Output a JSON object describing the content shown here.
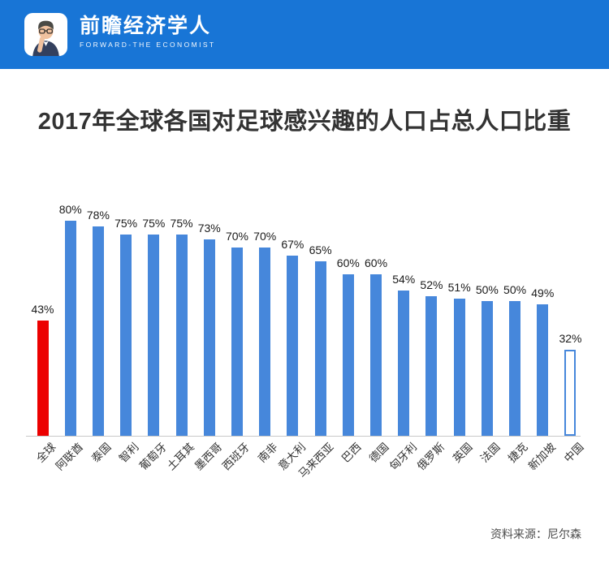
{
  "header": {
    "brand_cn": "前瞻经济学人",
    "brand_en": "FORWARD-THE ECONOMIST",
    "banner_color": "#1875D6"
  },
  "title": "2017年全球各国对足球感兴趣的人口占总人口比重",
  "source": "资料来源：尼尔森",
  "chart_data": {
    "type": "bar",
    "title": "2017年全球各国对足球感兴趣的人口占总人口比重",
    "categories": [
      "全球",
      "阿联酋",
      "泰国",
      "智利",
      "葡萄牙",
      "土耳其",
      "墨西哥",
      "西班牙",
      "南非",
      "意大利",
      "马来西亚",
      "巴西",
      "德国",
      "匈牙利",
      "俄罗斯",
      "英国",
      "法国",
      "捷克",
      "新加坡",
      "中国"
    ],
    "values": [
      43,
      80,
      78,
      75,
      75,
      75,
      73,
      70,
      70,
      67,
      65,
      60,
      60,
      54,
      52,
      51,
      50,
      50,
      49,
      32
    ],
    "labels": [
      "43%",
      "80%",
      "78%",
      "75%",
      "75%",
      "75%",
      "73%",
      "70%",
      "70%",
      "67%",
      "65%",
      "60%",
      "60%",
      "54%",
      "52%",
      "51%",
      "50%",
      "50%",
      "49%",
      "32%"
    ],
    "unit": "%",
    "xlabel": "",
    "ylabel": "",
    "ylim": [
      0,
      80
    ],
    "grid": false,
    "legend_position": "none",
    "bar_color": "#4687DB",
    "highlight": {
      "index": 0,
      "color": "#EC0000"
    },
    "hollow": {
      "index": 19,
      "border_color": "#4687DB",
      "fill": "#FFFFFF"
    }
  }
}
